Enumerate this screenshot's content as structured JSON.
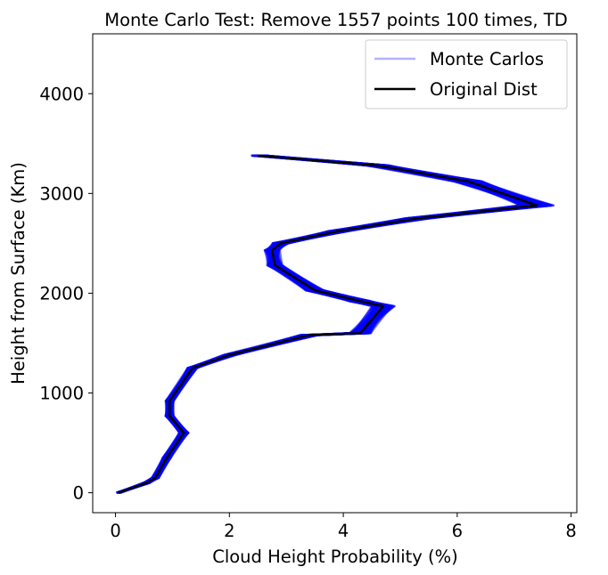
{
  "chart_data": {
    "type": "line",
    "title": "Monte Carlo Test: Remove 1557 points 100 times, TD",
    "xlabel": "Cloud Height Probability (%)",
    "ylabel": "Height from Surface (Km)",
    "xlim": [
      -0.4,
      8.1
    ],
    "ylim": [
      -200,
      4600
    ],
    "xticks": [
      0,
      2,
      4,
      6,
      8
    ],
    "xtick_labels": [
      "0",
      "2",
      "4",
      "6",
      "8"
    ],
    "yticks": [
      0,
      1000,
      2000,
      3000,
      4000
    ],
    "ytick_labels": [
      "0",
      "1000",
      "2000",
      "3000",
      "4000"
    ],
    "grid": false,
    "legend_placement": "top-right",
    "legend": [
      {
        "label": "Monte Carlos",
        "color": "#0000ff"
      },
      {
        "label": "Original Dist",
        "color": "#000000"
      }
    ],
    "series": [
      {
        "name": "Original Dist",
        "color": "#000000",
        "x": [
          0.05,
          0.55,
          0.7,
          0.9,
          1.2,
          0.95,
          0.95,
          1.35,
          2.0,
          3.4,
          4.3,
          4.7,
          4.3,
          3.5,
          2.8,
          2.75,
          2.9,
          3.9,
          5.3,
          7.4,
          6.2,
          4.6,
          2.5
        ],
        "y": [
          0,
          100,
          150,
          350,
          600,
          770,
          920,
          1250,
          1380,
          1580,
          1600,
          1870,
          1920,
          2030,
          2280,
          2430,
          2500,
          2620,
          2750,
          2880,
          3120,
          3280,
          3380
        ]
      }
    ],
    "monte_carlo_runs": 100
  }
}
